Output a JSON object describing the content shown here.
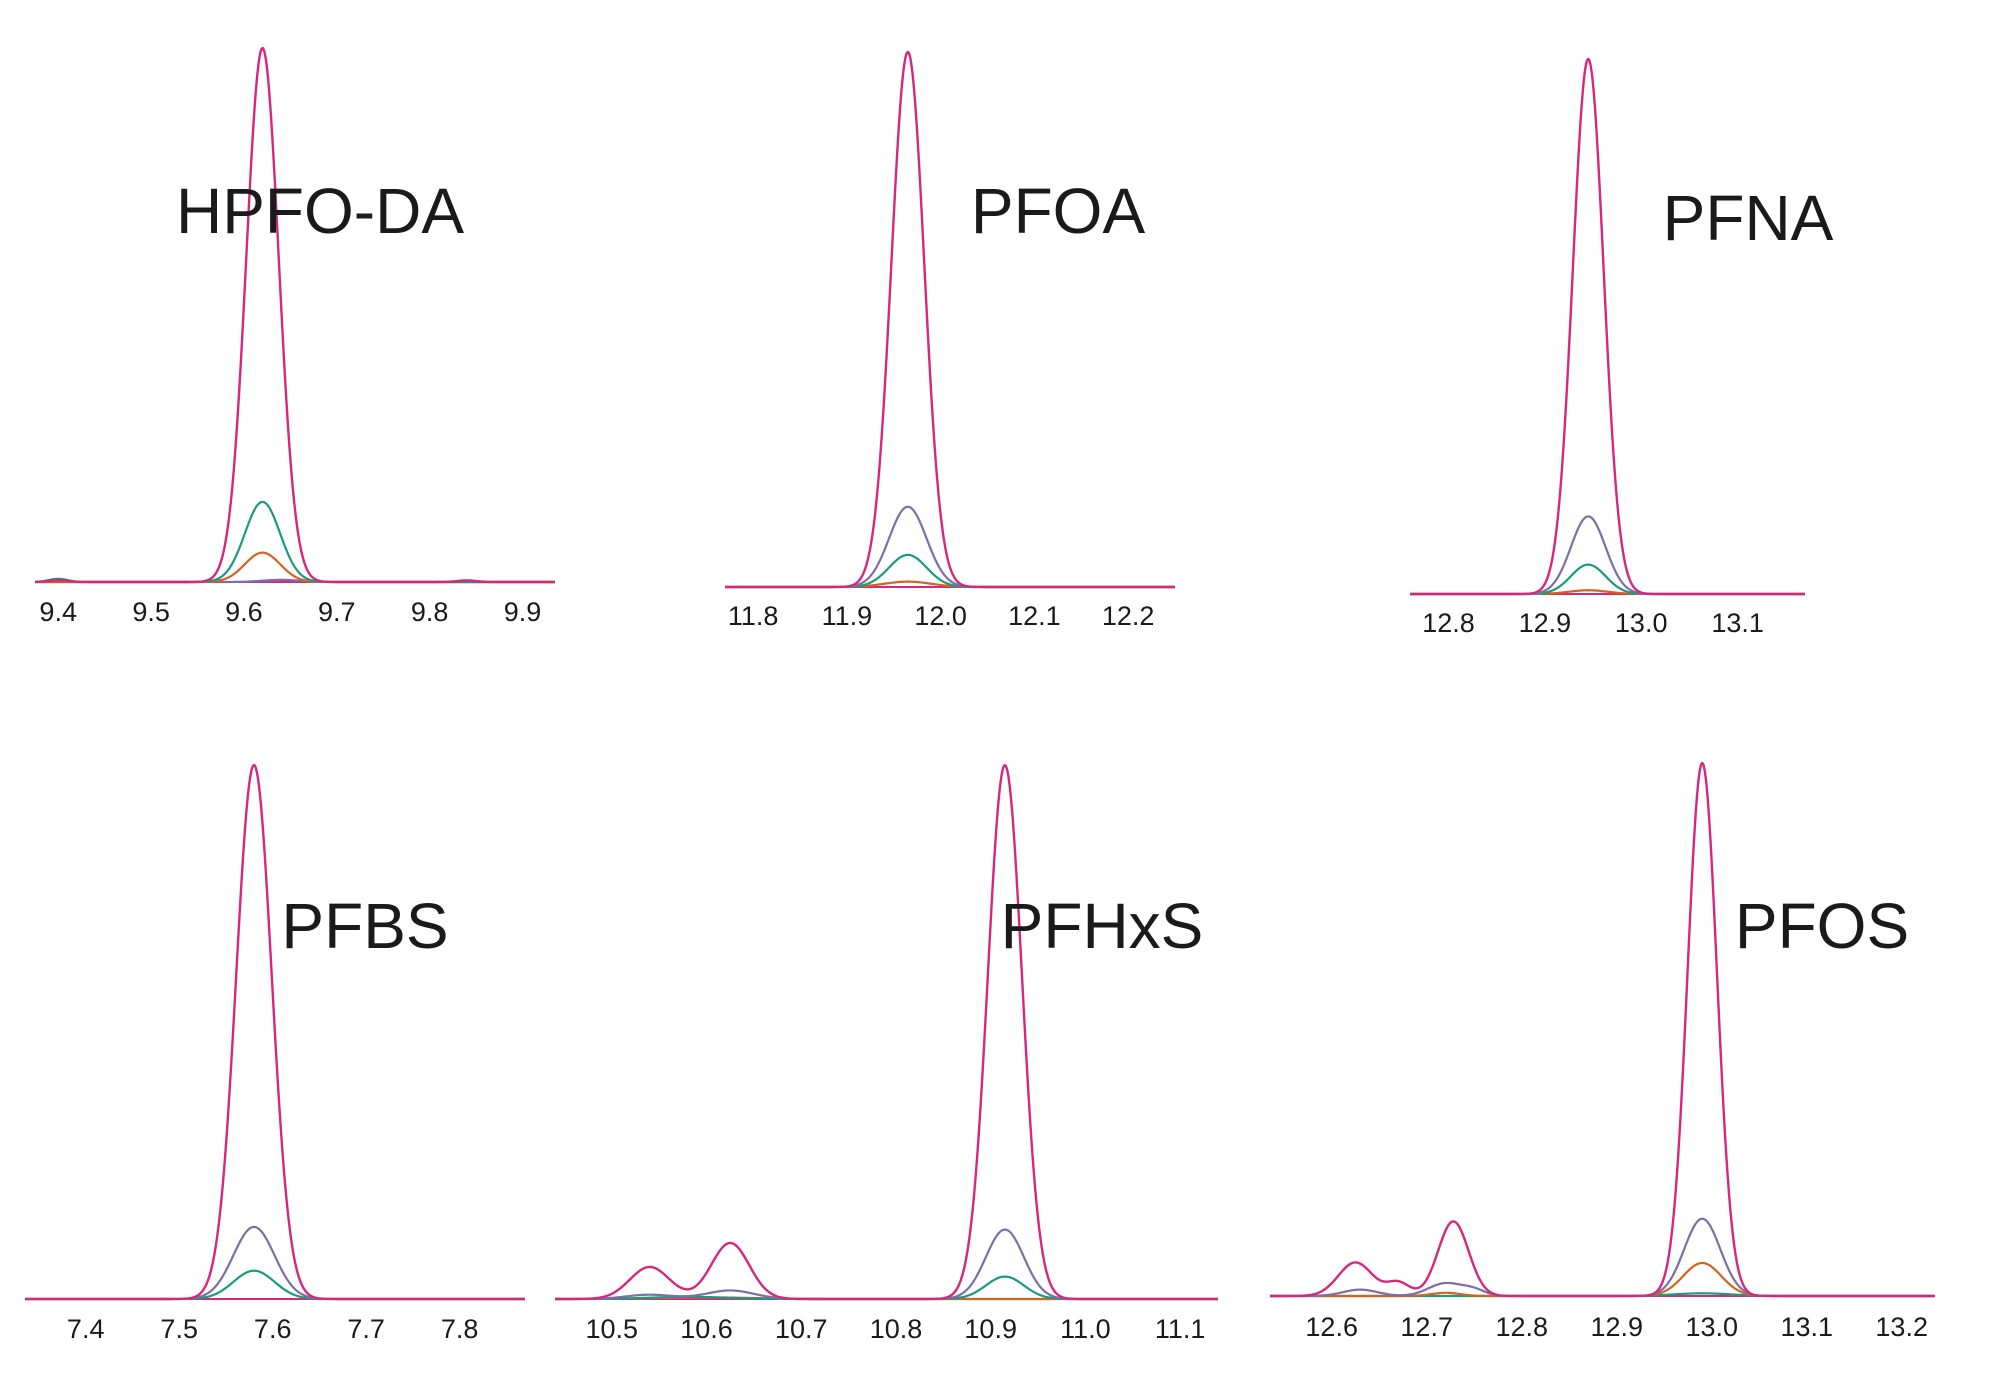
{
  "colors": {
    "magenta": "#d6277f",
    "purple": "#7a6fa8",
    "teal": "#1b9a7c",
    "orange": "#d3631f",
    "axis": "#d6277f"
  },
  "chart_data": [
    {
      "type": "line",
      "title": "HPFO-DA",
      "ticks": [
        9.4,
        9.5,
        9.6,
        9.7,
        9.8,
        9.9
      ],
      "tick_labels": [
        "9.4",
        "9.5",
        "9.6",
        "9.7",
        "9.8",
        "9.9"
      ],
      "xlim": [
        9.375,
        9.935
      ],
      "ylim": [
        0,
        100
      ],
      "series": [
        {
          "color": "magenta",
          "peaks": [
            [
              9.62,
              100,
              0.0175
            ],
            [
              9.4,
              0.35,
              0.01
            ],
            [
              9.84,
              0.3,
              0.01
            ]
          ]
        },
        {
          "color": "teal",
          "peaks": [
            [
              9.62,
              15,
              0.019
            ],
            [
              9.4,
              0.6,
              0.01
            ]
          ]
        },
        {
          "color": "orange",
          "peaks": [
            [
              9.62,
              5.5,
              0.019
            ]
          ]
        },
        {
          "color": "purple",
          "peaks": [
            [
              9.64,
              0.4,
              0.02
            ]
          ]
        }
      ]
    },
    {
      "type": "line",
      "title": "PFOA",
      "ticks": [
        11.8,
        11.9,
        12.0,
        12.1,
        12.2
      ],
      "tick_labels": [
        "11.8",
        "11.9",
        "12.0",
        "12.1",
        "12.2"
      ],
      "xlim": [
        11.77,
        12.25
      ],
      "ylim": [
        0,
        100
      ],
      "series": [
        {
          "color": "magenta",
          "peaks": [
            [
              11.965,
              100,
              0.0175
            ]
          ]
        },
        {
          "color": "purple",
          "peaks": [
            [
              11.965,
              15,
              0.02
            ]
          ]
        },
        {
          "color": "teal",
          "peaks": [
            [
              11.965,
              6,
              0.02
            ]
          ]
        },
        {
          "color": "orange",
          "peaks": [
            [
              11.965,
              1,
              0.025
            ]
          ]
        }
      ]
    },
    {
      "type": "line",
      "title": "PFNA",
      "ticks": [
        12.8,
        12.9,
        13.0,
        13.1
      ],
      "tick_labels": [
        "12.8",
        "12.9",
        "13.0",
        "13.1"
      ],
      "xlim": [
        12.76,
        13.17
      ],
      "ylim": [
        0,
        100
      ],
      "series": [
        {
          "color": "magenta",
          "peaks": [
            [
              12.945,
              100,
              0.016
            ]
          ]
        },
        {
          "color": "purple",
          "peaks": [
            [
              12.945,
              14.5,
              0.018
            ]
          ]
        },
        {
          "color": "teal",
          "peaks": [
            [
              12.945,
              5.5,
              0.018
            ]
          ]
        },
        {
          "color": "orange",
          "peaks": [
            [
              12.945,
              0.7,
              0.02
            ]
          ]
        }
      ]
    },
    {
      "type": "line",
      "title": "PFBS",
      "ticks": [
        7.4,
        7.5,
        7.6,
        7.7,
        7.8
      ],
      "tick_labels": [
        "7.4",
        "7.5",
        "7.6",
        "7.7",
        "7.8"
      ],
      "xlim": [
        7.335,
        7.87
      ],
      "ylim": [
        0,
        100
      ],
      "series": [
        {
          "color": "magenta",
          "peaks": [
            [
              7.58,
              100,
              0.019
            ]
          ]
        },
        {
          "color": "purple",
          "peaks": [
            [
              7.58,
              13.5,
              0.022
            ]
          ]
        },
        {
          "color": "teal",
          "peaks": [
            [
              7.58,
              5.3,
              0.022
            ]
          ]
        }
      ]
    },
    {
      "type": "line",
      "title": "PFHxS",
      "ticks": [
        10.5,
        10.6,
        10.7,
        10.8,
        10.9,
        11.0,
        11.1
      ],
      "tick_labels": [
        "10.5",
        "10.6",
        "10.7",
        "10.8",
        "10.9",
        "11.0",
        "11.1"
      ],
      "xlim": [
        10.44,
        11.14
      ],
      "ylim": [
        0,
        100
      ],
      "series": [
        {
          "color": "magenta",
          "peaks": [
            [
              10.915,
              100,
              0.018
            ],
            [
              10.54,
              6,
              0.021
            ],
            [
              10.625,
              10.5,
              0.02
            ]
          ]
        },
        {
          "color": "purple",
          "peaks": [
            [
              10.915,
              13,
              0.02
            ],
            [
              10.54,
              0.8,
              0.025
            ],
            [
              10.625,
              1.6,
              0.025
            ]
          ]
        },
        {
          "color": "teal",
          "peaks": [
            [
              10.915,
              4.2,
              0.02
            ],
            [
              10.58,
              0.4,
              0.04
            ]
          ]
        },
        {
          "color": "orange",
          "peaks": [
            [
              10.6,
              0.3,
              0.05
            ]
          ]
        }
      ]
    },
    {
      "type": "line",
      "title": "PFOS",
      "ticks": [
        12.6,
        12.7,
        12.8,
        12.9,
        13.0,
        13.1,
        13.2
      ],
      "tick_labels": [
        "12.6",
        "12.7",
        "12.8",
        "12.9",
        "13.0",
        "13.1",
        "13.2"
      ],
      "xlim": [
        12.535,
        13.235
      ],
      "ylim": [
        0,
        100
      ],
      "series": [
        {
          "color": "magenta",
          "peaks": [
            [
              12.99,
              100,
              0.0155
            ],
            [
              12.625,
              6.3,
              0.018
            ],
            [
              12.67,
              2.5,
              0.012
            ],
            [
              12.728,
              14,
              0.016
            ]
          ]
        },
        {
          "color": "purple",
          "peaks": [
            [
              12.99,
              14.5,
              0.019
            ],
            [
              12.63,
              1.2,
              0.018
            ],
            [
              12.72,
              2.4,
              0.018
            ],
            [
              12.75,
              1,
              0.012
            ]
          ]
        },
        {
          "color": "orange",
          "peaks": [
            [
              12.99,
              6.2,
              0.02
            ],
            [
              12.72,
              0.6,
              0.015
            ]
          ]
        },
        {
          "color": "teal",
          "peaks": [
            [
              12.99,
              0.5,
              0.03
            ]
          ]
        }
      ]
    }
  ]
}
